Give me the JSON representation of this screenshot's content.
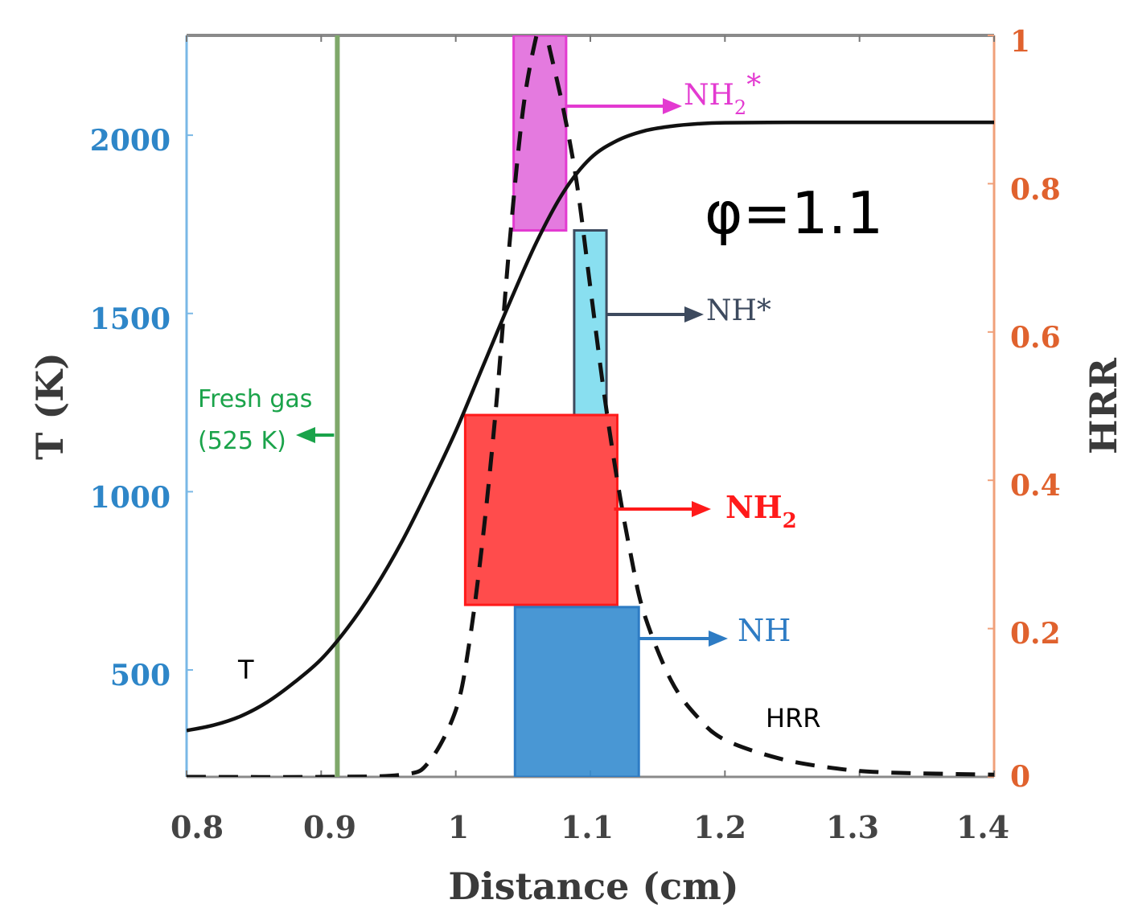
{
  "chart_data": {
    "type": "line",
    "xlabel": "Distance (cm)",
    "ylabel_left": "T (K)",
    "ylabel_right": "HRR",
    "xlim": [
      0.8,
      1.4
    ],
    "ylim_left": [
      200,
      2280
    ],
    "ylim_right": [
      0,
      1
    ],
    "x_ticks": [
      "0.8",
      "0.9",
      "1",
      "1.1",
      "1.2",
      "1.3",
      "1.4"
    ],
    "y_left_ticks": [
      "500",
      "1000",
      "1500",
      "2000"
    ],
    "y_right_ticks": [
      "0",
      "0.2",
      "0.4",
      "0.6",
      "0.8",
      "1"
    ],
    "phi_label": "φ=1.1",
    "series": [
      {
        "name": "T",
        "axis": "left",
        "style": "solid",
        "x": [
          0.8,
          0.82,
          0.84,
          0.86,
          0.88,
          0.9,
          0.92,
          0.94,
          0.96,
          0.98,
          1.0,
          1.02,
          1.04,
          1.06,
          1.08,
          1.1,
          1.12,
          1.14,
          1.16,
          1.18,
          1.2,
          1.25,
          1.3,
          1.35,
          1.4
        ],
        "y": [
          330,
          345,
          370,
          410,
          465,
          530,
          620,
          730,
          860,
          1010,
          1170,
          1350,
          1530,
          1700,
          1840,
          1935,
          1985,
          2012,
          2025,
          2032,
          2035,
          2036,
          2036,
          2036,
          2036
        ]
      },
      {
        "name": "HRR",
        "axis": "right",
        "style": "dashed",
        "x": [
          0.8,
          0.9,
          0.96,
          0.98,
          1.0,
          1.01,
          1.02,
          1.03,
          1.04,
          1.05,
          1.06,
          1.065,
          1.07,
          1.08,
          1.09,
          1.1,
          1.11,
          1.12,
          1.13,
          1.14,
          1.16,
          1.18,
          1.2,
          1.24,
          1.28,
          1.32,
          1.4
        ],
        "y": [
          0.0,
          0.0,
          0.003,
          0.02,
          0.09,
          0.18,
          0.32,
          0.5,
          0.72,
          0.9,
          1.0,
          1.02,
          0.98,
          0.9,
          0.8,
          0.66,
          0.52,
          0.4,
          0.3,
          0.22,
          0.13,
          0.08,
          0.05,
          0.025,
          0.012,
          0.006,
          0.003
        ]
      }
    ],
    "fresh_gas_line_x": 0.912,
    "regions": [
      {
        "label": "NH2*",
        "x": [
          1.043,
          1.082
        ],
        "y": [
          0.737,
          1.0
        ],
        "color": "#e26fdc",
        "text_color": "#e33ad1",
        "arrow_color": "#e33ad1"
      },
      {
        "label": "NH*",
        "x": [
          1.088,
          1.112
        ],
        "y": [
          0.488,
          0.737
        ],
        "color": "#7fdcef",
        "text_color": "#3d4a5e",
        "arrow_color": "#3d4a5e"
      },
      {
        "label": "NH2",
        "x": [
          1.007,
          1.12
        ],
        "y": [
          0.232,
          0.488
        ],
        "color": "#ff3d3d",
        "text_color": "#ff1a1a",
        "arrow_color": "#ff1a1a"
      },
      {
        "label": "NH",
        "x": [
          1.044,
          1.136
        ],
        "y": [
          0.0,
          0.229
        ],
        "color": "#3a8ed0",
        "text_color": "#2e7cc4",
        "arrow_color": "#2e7cc4"
      }
    ],
    "annotations": {
      "fresh_gas_line1": "Fresh gas",
      "fresh_gas_line2": "(525 K)",
      "t_label": "T",
      "hrr_label": "HRR",
      "nh2_star": "NH",
      "nh2_star_sub": "2",
      "nh2_star_sup": "*",
      "nh_star": "NH*",
      "nh2": "NH",
      "nh2_sub": "2",
      "nh": "NH"
    }
  },
  "colors": {
    "left_axis": "#7ab8e6",
    "right_axis": "#f0a07a",
    "fresh_gas_line": "#7fa86a",
    "fresh_gas_text": "#1aa34a"
  }
}
